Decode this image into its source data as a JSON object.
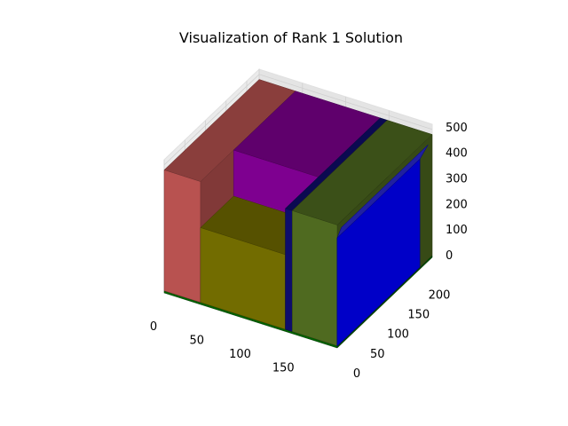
{
  "chart_data": {
    "type": "3d-bar",
    "title": "Visualization of Rank 1 Solution",
    "xlabel": "",
    "ylabel": "",
    "zlabel": "",
    "grid": true,
    "xlim": [
      0,
      200
    ],
    "ylim": [
      0,
      230
    ],
    "zlim": [
      0,
      520
    ],
    "x_ticks": [
      0,
      50,
      100,
      150
    ],
    "y_ticks": [
      0,
      50,
      100,
      150,
      200
    ],
    "z_ticks": [
      0,
      100,
      200,
      300,
      400,
      500
    ],
    "boxes": [
      {
        "name": "dark green strip",
        "x": [
          0,
          200
        ],
        "y": [
          0,
          230
        ],
        "z": [
          0,
          8
        ],
        "color": "#006400"
      },
      {
        "name": "brown block",
        "x": [
          0,
          42
        ],
        "y": [
          0,
          230
        ],
        "z": [
          8,
          480
        ],
        "color": "#b85250"
      },
      {
        "name": "purple block",
        "x": [
          42,
          140
        ],
        "y": [
          80,
          230
        ],
        "z": [
          260,
          480
        ],
        "color": "#7e0090"
      },
      {
        "name": "olive block",
        "x": [
          42,
          140
        ],
        "y": [
          0,
          80
        ],
        "z": [
          8,
          300
        ],
        "color": "#726c00"
      },
      {
        "name": "navy strip",
        "x": [
          140,
          148
        ],
        "y": [
          0,
          230
        ],
        "z": [
          8,
          480
        ],
        "color": "#0e0d6c"
      },
      {
        "name": "green block",
        "x": [
          148,
          200
        ],
        "y": [
          0,
          230
        ],
        "z": [
          8,
          480
        ],
        "color": "#4f6a20"
      },
      {
        "name": "blue block",
        "x": [
          200,
          200
        ],
        "y": [
          0,
          200
        ],
        "z": [
          8,
          430
        ],
        "color": "#0000c8"
      }
    ]
  }
}
